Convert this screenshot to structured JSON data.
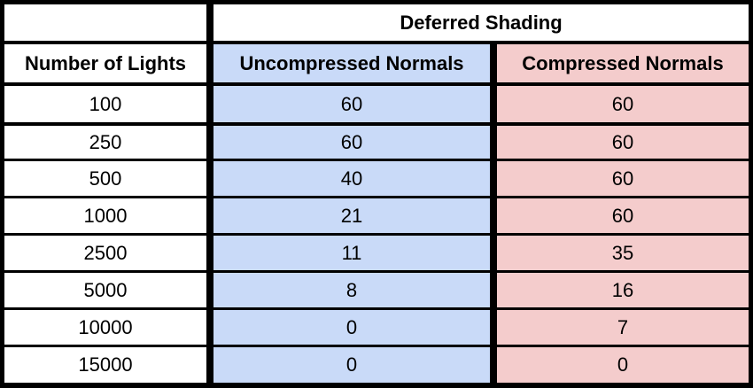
{
  "chart_data": {
    "type": "table",
    "group_header": "Deferred Shading",
    "columns": [
      "Number of Lights",
      "Uncompressed Normals",
      "Compressed Normals"
    ],
    "rows": [
      [
        "100",
        "60",
        "60"
      ],
      [
        "250",
        "60",
        "60"
      ],
      [
        "500",
        "40",
        "60"
      ],
      [
        "1000",
        "21",
        "60"
      ],
      [
        "2500",
        "11",
        "35"
      ],
      [
        "5000",
        "8",
        "16"
      ],
      [
        "10000",
        "0",
        "7"
      ],
      [
        "15000",
        "0",
        "0"
      ]
    ],
    "colors": {
      "border": "#000000",
      "first_column": "#ffffff",
      "uncompressed_column": "#c9daf8",
      "compressed_column": "#f4cccc"
    }
  }
}
